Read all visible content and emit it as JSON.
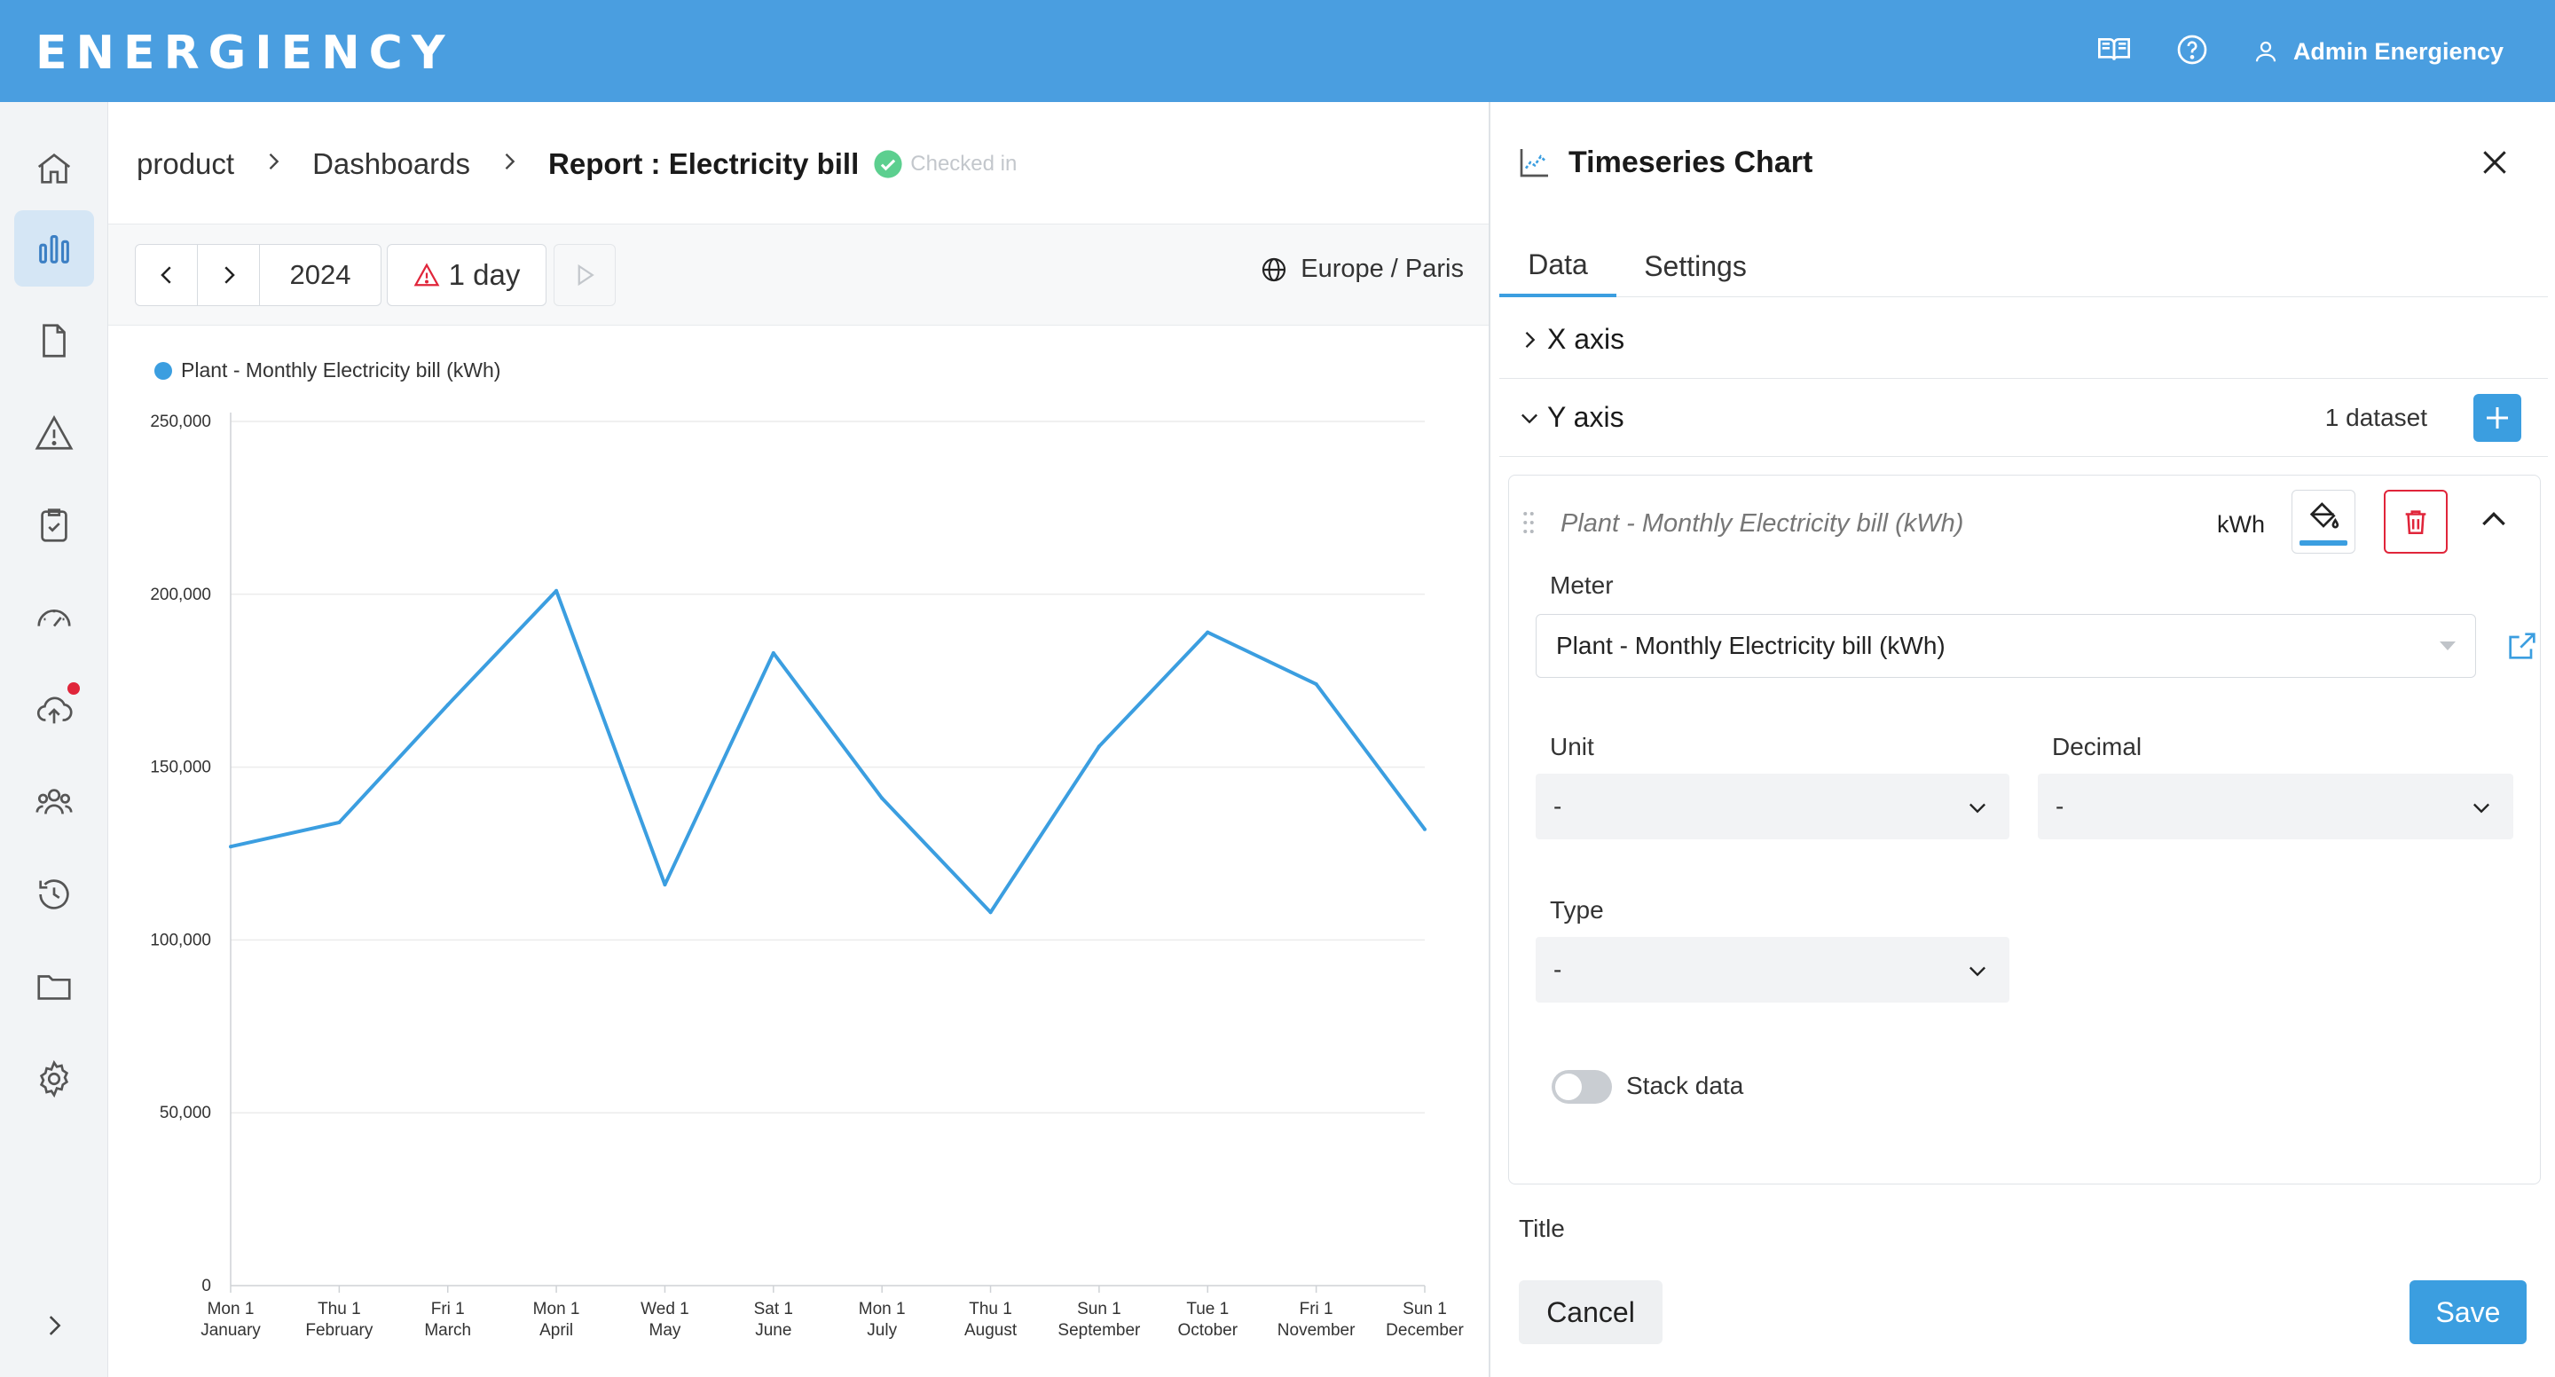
{
  "app": {
    "logo": "ENERGIENCY",
    "user_name": "Admin Energiency",
    "top_icons": [
      "book-icon",
      "help-icon",
      "user-icon"
    ]
  },
  "sidebar": {
    "items": [
      {
        "name": "home-icon",
        "active": false
      },
      {
        "name": "dashboard-chart-icon",
        "active": true
      },
      {
        "name": "document-icon",
        "active": false
      },
      {
        "name": "alert-icon",
        "active": false
      },
      {
        "name": "checklist-icon",
        "active": false
      },
      {
        "name": "gauge-icon",
        "active": false
      },
      {
        "name": "cloud-upload-icon",
        "active": false,
        "badge": true
      },
      {
        "name": "users-icon",
        "active": false
      },
      {
        "name": "history-icon",
        "active": false
      },
      {
        "name": "folder-icon",
        "active": false
      },
      {
        "name": "settings-gear-icon",
        "active": false
      }
    ],
    "expand_icon": "chevron-right-icon"
  },
  "breadcrumb": {
    "items": [
      "product",
      "Dashboards"
    ],
    "current": "Report : Electricity bill",
    "status": "Checked in"
  },
  "toolbar": {
    "year": "2024",
    "period": "1 day",
    "timezone": "Europe / Paris"
  },
  "chart_data": {
    "type": "line",
    "legend": "Plant - Monthly Electricity bill (kWh)",
    "color": "#3b9ee0",
    "categories": [
      [
        "Mon 1",
        "January"
      ],
      [
        "Thu 1",
        "February"
      ],
      [
        "Fri 1",
        "March"
      ],
      [
        "Mon 1",
        "April"
      ],
      [
        "Wed 1",
        "May"
      ],
      [
        "Sat 1",
        "June"
      ],
      [
        "Mon 1",
        "July"
      ],
      [
        "Thu 1",
        "August"
      ],
      [
        "Sun 1",
        "September"
      ],
      [
        "Tue 1",
        "October"
      ],
      [
        "Fri 1",
        "November"
      ],
      [
        "Sun 1",
        "December"
      ]
    ],
    "values": [
      127000,
      134000,
      168000,
      201000,
      116000,
      183000,
      141000,
      108000,
      156000,
      189000,
      174000,
      132000
    ],
    "ylim": [
      0,
      250000
    ],
    "yticks": [
      0,
      50000,
      100000,
      150000,
      200000,
      250000
    ],
    "ytick_labels": [
      "0",
      "50,000",
      "100,000",
      "150,000",
      "200,000",
      "250,000"
    ],
    "grid": true,
    "legend_position": "top-left"
  },
  "panel": {
    "title": "Timeseries Chart",
    "tabs": [
      "Data",
      "Settings"
    ],
    "x_axis_label": "X axis",
    "y_axis_label": "Y axis",
    "dataset_count": "1 dataset",
    "dataset": {
      "title": "Plant - Monthly Electricity bill (kWh)",
      "unit": "kWh",
      "meter_label": "Meter",
      "meter_value": "Plant - Monthly Electricity bill (kWh)",
      "unit_label": "Unit",
      "unit_value": "-",
      "decimal_label": "Decimal",
      "decimal_value": "-",
      "type_label": "Type",
      "type_value": "-",
      "stack_label": "Stack data"
    },
    "title_label": "Title",
    "cancel_label": "Cancel",
    "save_label": "Save"
  }
}
